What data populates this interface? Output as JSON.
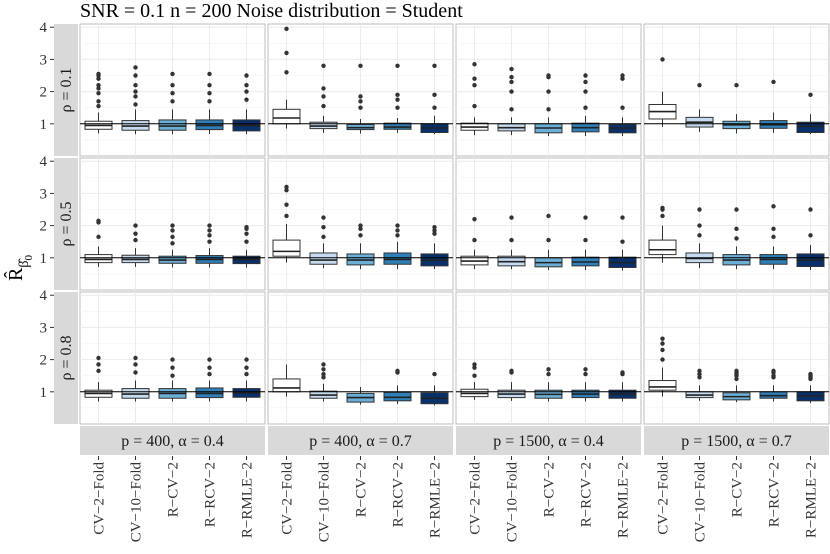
{
  "chart_data": {
    "type": "boxplot",
    "title": "SNR = 0.1 n = 200 Noise distribution = Student",
    "ylabel": "R̂",
    "ylabel_sub": "β̂",
    "ylabel_subsub": "0",
    "ylim": [
      0,
      4.1
    ],
    "yticks": [
      "1",
      "2",
      "3",
      "4"
    ],
    "reference_line": 1,
    "grid": true,
    "categories": [
      "CV−2−Fold",
      "CV−10−Fold",
      "R−CV−2",
      "R−RCV−2",
      "R−RMLE−2"
    ],
    "colors": [
      "#ffffff",
      "#c6dbef",
      "#6baed6",
      "#2f80b8",
      "#08306b"
    ],
    "facet_cols": [
      "p = 400, α = 0.4",
      "p = 400, α = 0.7",
      "p = 1500, α = 0.4",
      "p = 1500, α = 0.7"
    ],
    "facet_rows": [
      "ρ = 0.1",
      "ρ = 0.5",
      "ρ = 0.8"
    ],
    "panels": [
      [
        [
          [
            0.7,
            0.83,
            0.95,
            1.08,
            1.35,
            [
              1.55,
              1.7,
              1.95,
              2.1,
              2.2,
              2.4,
              2.5,
              2.55
            ]
          ],
          [
            0.68,
            0.8,
            0.93,
            1.1,
            1.45,
            [
              1.6,
              1.85,
              2.0,
              2.2,
              2.5,
              2.75
            ]
          ],
          [
            0.68,
            0.8,
            0.93,
            1.12,
            1.45,
            [
              1.7,
              1.95,
              2.2,
              2.55
            ]
          ],
          [
            0.68,
            0.82,
            0.95,
            1.12,
            1.45,
            [
              1.7,
              1.95,
              2.2,
              2.55
            ]
          ],
          [
            0.68,
            0.78,
            0.95,
            1.12,
            1.45,
            [
              1.75,
              2.0,
              2.2,
              2.5
            ]
          ]
        ],
        [
          [
            0.85,
            1.0,
            1.18,
            1.45,
            1.75,
            [
              2.6,
              3.2,
              3.95
            ]
          ],
          [
            0.72,
            0.85,
            0.93,
            1.05,
            1.25,
            [
              1.55,
              1.85,
              2.1,
              2.8
            ]
          ],
          [
            0.7,
            0.82,
            0.88,
            0.98,
            1.15,
            [
              1.5,
              1.7,
              1.85,
              2.8
            ]
          ],
          [
            0.72,
            0.83,
            0.9,
            1.02,
            1.18,
            [
              1.5,
              1.75,
              1.9,
              2.8
            ]
          ],
          [
            0.68,
            0.73,
            0.87,
            1.0,
            1.25,
            [
              1.5,
              1.9,
              2.8
            ]
          ]
        ],
        [
          [
            0.65,
            0.8,
            0.9,
            1.02,
            1.2,
            [
              1.55,
              2.2,
              2.4,
              2.85
            ]
          ],
          [
            0.65,
            0.78,
            0.88,
            1.0,
            1.2,
            [
              1.45,
              2.0,
              2.3,
              2.45,
              2.7
            ]
          ],
          [
            0.62,
            0.72,
            0.87,
            1.0,
            1.2,
            [
              1.45,
              2.0,
              2.45,
              2.5
            ]
          ],
          [
            0.62,
            0.75,
            0.88,
            1.02,
            1.25,
            [
              1.5,
              2.0,
              2.3,
              2.5
            ]
          ],
          [
            0.62,
            0.72,
            0.87,
            0.98,
            1.2,
            [
              1.5,
              2.4,
              2.5
            ]
          ]
        ],
        [
          [
            0.9,
            1.15,
            1.38,
            1.6,
            2.0,
            [
              3.0
            ]
          ],
          [
            0.75,
            0.9,
            1.05,
            1.2,
            1.45,
            [
              2.2
            ]
          ],
          [
            0.7,
            0.85,
            0.97,
            1.08,
            1.3,
            [
              2.2
            ]
          ],
          [
            0.72,
            0.86,
            0.97,
            1.1,
            1.35,
            [
              2.3
            ]
          ],
          [
            0.68,
            0.73,
            0.92,
            1.05,
            1.3,
            [
              1.9
            ]
          ]
        ]
      ],
      [
        [
          [
            0.72,
            0.85,
            0.95,
            1.1,
            1.35,
            [
              1.65,
              2.1,
              2.15
            ]
          ],
          [
            0.72,
            0.85,
            0.95,
            1.08,
            1.3,
            [
              1.55,
              1.75,
              2.0
            ]
          ],
          [
            0.7,
            0.83,
            0.93,
            1.05,
            1.25,
            [
              1.45,
              1.65,
              1.85,
              2.0
            ]
          ],
          [
            0.7,
            0.83,
            0.95,
            1.07,
            1.3,
            [
              1.5,
              1.7,
              1.85,
              2.0
            ]
          ],
          [
            0.7,
            0.82,
            0.95,
            1.05,
            1.25,
            [
              1.5,
              1.75,
              1.9,
              1.95
            ]
          ]
        ],
        [
          [
            0.85,
            1.05,
            1.2,
            1.55,
            2.05,
            [
              2.3,
              2.65,
              3.1,
              3.2
            ]
          ],
          [
            0.68,
            0.8,
            0.93,
            1.15,
            1.45,
            [
              1.65,
              1.95,
              2.25
            ]
          ],
          [
            0.65,
            0.78,
            0.93,
            1.12,
            1.45,
            [
              1.7,
              1.9,
              2.0
            ]
          ],
          [
            0.65,
            0.8,
            0.95,
            1.15,
            1.5,
            [
              1.7,
              1.85,
              2.0
            ]
          ],
          [
            0.65,
            0.75,
            0.93,
            1.12,
            1.45,
            [
              1.75,
              1.85,
              1.95
            ]
          ]
        ],
        [
          [
            0.65,
            0.78,
            0.9,
            1.05,
            1.25,
            [
              1.55,
              2.2
            ]
          ],
          [
            0.65,
            0.75,
            0.88,
            1.05,
            1.25,
            [
              1.55,
              2.25
            ]
          ],
          [
            0.62,
            0.72,
            0.85,
            1.0,
            1.25,
            [
              1.55,
              2.3
            ]
          ],
          [
            0.62,
            0.75,
            0.87,
            1.02,
            1.25,
            [
              1.55,
              2.25
            ]
          ],
          [
            0.6,
            0.7,
            0.85,
            1.02,
            1.25,
            [
              1.5,
              2.25
            ]
          ]
        ],
        [
          [
            0.85,
            1.1,
            1.25,
            1.55,
            2.0,
            [
              2.3,
              2.5,
              2.55
            ]
          ],
          [
            0.68,
            0.85,
            0.98,
            1.15,
            1.45,
            [
              1.7,
              2.0,
              2.5
            ]
          ],
          [
            0.65,
            0.78,
            0.93,
            1.1,
            1.35,
            [
              1.6,
              1.9,
              2.5
            ]
          ],
          [
            0.65,
            0.8,
            0.95,
            1.1,
            1.35,
            [
              1.65,
              1.9,
              2.6
            ]
          ],
          [
            0.62,
            0.73,
            0.93,
            1.12,
            1.4,
            [
              1.7,
              2.5
            ]
          ]
        ]
      ],
      [
        [
          [
            0.7,
            0.83,
            0.95,
            1.05,
            1.3,
            [
              1.65,
              1.85,
              2.05
            ]
          ],
          [
            0.7,
            0.8,
            0.93,
            1.1,
            1.35,
            [
              1.6,
              1.85,
              2.05
            ]
          ],
          [
            0.7,
            0.8,
            0.95,
            1.1,
            1.35,
            [
              1.5,
              1.75,
              2.0
            ]
          ],
          [
            0.7,
            0.82,
            0.95,
            1.12,
            1.35,
            [
              1.55,
              1.75,
              2.0
            ]
          ],
          [
            0.7,
            0.83,
            0.97,
            1.1,
            1.35,
            [
              1.55,
              1.75,
              2.0
            ]
          ]
        ],
        [
          [
            0.85,
            1.0,
            1.12,
            1.4,
            1.85,
            []
          ],
          [
            0.7,
            0.8,
            0.9,
            1.02,
            1.25,
            [
              1.45,
              1.55,
              1.7,
              1.85
            ]
          ],
          [
            0.6,
            0.68,
            0.82,
            0.95,
            1.15,
            []
          ],
          [
            0.62,
            0.72,
            0.83,
            0.98,
            1.2,
            [
              1.6,
              1.65
            ]
          ],
          [
            0.58,
            0.63,
            0.8,
            0.97,
            1.2,
            [
              1.55
            ]
          ]
        ],
        [
          [
            0.75,
            0.85,
            0.95,
            1.08,
            1.3,
            [
              1.5,
              1.75,
              1.85
            ]
          ],
          [
            0.72,
            0.82,
            0.93,
            1.05,
            1.3,
            [
              1.6,
              1.65
            ]
          ],
          [
            0.7,
            0.8,
            0.92,
            1.05,
            1.3,
            [
              1.55,
              1.7
            ]
          ],
          [
            0.7,
            0.82,
            0.93,
            1.05,
            1.3,
            [
              1.55,
              1.7
            ]
          ],
          [
            0.7,
            0.8,
            0.93,
            1.05,
            1.3,
            [
              1.55,
              1.6
            ]
          ]
        ],
        [
          [
            0.85,
            1.05,
            1.15,
            1.35,
            1.75,
            [
              2.0,
              2.3,
              2.5,
              2.65
            ]
          ],
          [
            0.72,
            0.82,
            0.9,
            1.0,
            1.2,
            [
              1.45,
              1.55,
              1.65
            ]
          ],
          [
            0.68,
            0.75,
            0.85,
            0.97,
            1.2,
            [
              1.4,
              1.5,
              1.55,
              1.6,
              1.65
            ]
          ],
          [
            0.7,
            0.8,
            0.88,
            1.0,
            1.2,
            [
              1.45,
              1.5,
              1.6,
              1.65
            ]
          ],
          [
            0.65,
            0.72,
            0.87,
            1.0,
            1.2,
            [
              1.4,
              1.45,
              1.5,
              1.55
            ]
          ]
        ]
      ]
    ]
  }
}
